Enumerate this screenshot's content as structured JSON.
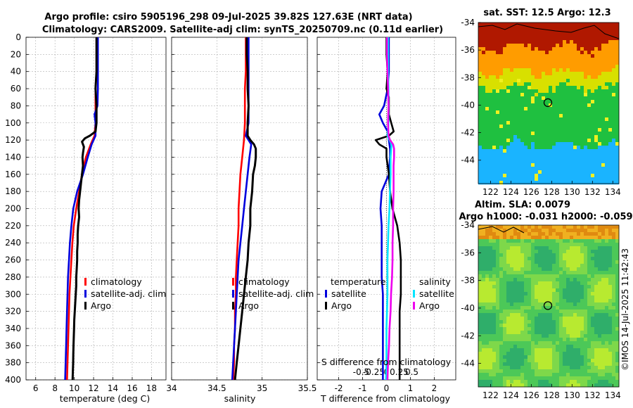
{
  "header": {
    "title_line1": "Argo profile: csiro 5905196_298 09-Jul-2025 39.82S 127.63E (NRT data)",
    "title_line2": "Climatology: CARS2009. Satellite-adj clim: synTS_20250709.nc (0.11d earlier)"
  },
  "credit": "©IMOS 14-Jul-2025 11:42:43",
  "depth_axis": {
    "ylim": [
      0,
      400
    ],
    "ticks": [
      0,
      20,
      40,
      60,
      80,
      100,
      120,
      140,
      160,
      180,
      200,
      220,
      240,
      260,
      280,
      300,
      320,
      340,
      360,
      380,
      400
    ]
  },
  "colors": {
    "climatology": "#ff0000",
    "satellite_adj": "#0000dd",
    "argo": "#000000",
    "sat_salinity": "#00e5ff",
    "argo_salinity": "#ee00ee",
    "zero_line": "#505050"
  },
  "chart_data": [
    {
      "type": "line",
      "panel": "temperature",
      "xlabel": "temperature (deg C)",
      "xlim": [
        5,
        19.5
      ],
      "xticks": [
        6,
        8,
        10,
        12,
        14,
        16,
        18
      ],
      "ylabel": "",
      "legend": {
        "position": "bottom-right",
        "entries": [
          "climatology",
          "satellite-adj. clim",
          "Argo"
        ]
      },
      "series": [
        {
          "name": "climatology",
          "depth": [
            0,
            20,
            40,
            60,
            80,
            100,
            115,
            125,
            140,
            160,
            180,
            200,
            220,
            240,
            260,
            280,
            300,
            320,
            340,
            360,
            380,
            400
          ],
          "values": [
            12.3,
            12.3,
            12.3,
            12.2,
            12.2,
            12.2,
            12.1,
            11.7,
            11.2,
            10.8,
            10.5,
            10.2,
            9.95,
            9.8,
            9.7,
            9.6,
            9.5,
            9.45,
            9.4,
            9.35,
            9.3,
            9.25
          ]
        },
        {
          "name": "satellite-adj. clim",
          "depth": [
            0,
            20,
            40,
            60,
            80,
            90,
            100,
            115,
            125,
            140,
            160,
            180,
            200,
            220,
            240,
            260,
            280,
            300,
            320,
            340,
            360,
            380,
            400
          ],
          "values": [
            12.45,
            12.45,
            12.45,
            12.45,
            12.4,
            12.1,
            12.2,
            12.2,
            11.8,
            11.4,
            10.9,
            10.3,
            9.9,
            9.7,
            9.55,
            9.45,
            9.35,
            9.3,
            9.25,
            9.2,
            9.15,
            9.1,
            9.05
          ]
        },
        {
          "name": "Argo",
          "depth": [
            0,
            20,
            40,
            60,
            80,
            100,
            110,
            115,
            118,
            122,
            128,
            135,
            140,
            150,
            160,
            170,
            180,
            190,
            200,
            210,
            220,
            230,
            240,
            250,
            260,
            270,
            280,
            290,
            300,
            310,
            320,
            330,
            340,
            350,
            360,
            370,
            380,
            390,
            400
          ],
          "values": [
            12.3,
            12.3,
            12.3,
            12.2,
            12.3,
            12.3,
            12.2,
            11.6,
            11.1,
            10.8,
            11.0,
            10.9,
            10.85,
            10.9,
            10.8,
            10.7,
            10.6,
            10.5,
            10.45,
            10.5,
            10.4,
            10.35,
            10.35,
            10.3,
            10.3,
            10.25,
            10.2,
            10.2,
            10.15,
            10.1,
            10.05,
            10.0,
            9.98,
            9.95,
            9.92,
            9.9,
            9.88,
            9.85,
            9.82
          ]
        }
      ]
    },
    {
      "type": "line",
      "panel": "salinity",
      "xlabel": "salinity",
      "xlim": [
        34.0,
        35.5
      ],
      "xticks": [
        34,
        34.5,
        35,
        35.5
      ],
      "xtick_labels": [
        "34",
        "34.5",
        "35",
        "35.5"
      ],
      "legend": {
        "position": "bottom-right",
        "entries": [
          "climatology",
          "satellite-adj. clim",
          "Argo"
        ]
      },
      "series": [
        {
          "name": "climatology",
          "depth": [
            0,
            20,
            40,
            60,
            80,
            100,
            120,
            140,
            160,
            180,
            200,
            220,
            240,
            260,
            280,
            300,
            320,
            340,
            360,
            380,
            400
          ],
          "values": [
            34.82,
            34.82,
            34.82,
            34.81,
            34.81,
            34.81,
            34.8,
            34.78,
            34.76,
            34.75,
            34.74,
            34.74,
            34.73,
            34.72,
            34.71,
            34.71,
            34.7,
            34.7,
            34.69,
            34.69,
            34.68
          ]
        },
        {
          "name": "satellite-adj. clim",
          "depth": [
            0,
            20,
            40,
            60,
            80,
            100,
            115,
            125,
            140,
            160,
            180,
            200,
            220,
            240,
            260,
            280,
            300,
            320,
            340,
            360,
            380,
            400
          ],
          "values": [
            34.85,
            34.85,
            34.85,
            34.85,
            34.85,
            34.85,
            34.82,
            34.88,
            34.86,
            34.84,
            34.82,
            34.8,
            34.78,
            34.76,
            34.74,
            34.73,
            34.72,
            34.71,
            34.7,
            34.69,
            34.68,
            34.67
          ]
        },
        {
          "name": "Argo",
          "depth": [
            0,
            20,
            40,
            60,
            80,
            100,
            115,
            120,
            125,
            130,
            140,
            150,
            160,
            180,
            200,
            220,
            240,
            260,
            280,
            300,
            320,
            340,
            360,
            380,
            400
          ],
          "values": [
            34.83,
            34.83,
            34.84,
            34.84,
            34.85,
            34.84,
            34.84,
            34.87,
            34.91,
            34.93,
            34.93,
            34.92,
            34.9,
            34.89,
            34.87,
            34.87,
            34.85,
            34.84,
            34.82,
            34.8,
            34.78,
            34.76,
            34.74,
            34.72,
            34.7
          ]
        }
      ]
    },
    {
      "type": "line",
      "panel": "difference",
      "xlabel": "T difference from climatology",
      "xlim": [
        -2.9,
        2.9
      ],
      "xticks": [
        -2,
        -1,
        0,
        1,
        2
      ],
      "s_axis_title": "S difference from climatology",
      "s_xticks": [
        -0.5,
        -0.25,
        0,
        0.25,
        0.5
      ],
      "s_xtick_labels": [
        "-0.5",
        "-0.25",
        "0",
        "0.25",
        "0.5"
      ],
      "legend": {
        "position": "bottom",
        "temperature_title": "temperature",
        "salinity_title": "salinity",
        "entries": [
          "satellite",
          "Argo",
          "satellite",
          "Argo"
        ]
      },
      "series": [
        {
          "name": "temperature satellite",
          "depth": [
            0,
            20,
            40,
            60,
            80,
            90,
            100,
            110,
            120,
            130,
            140,
            160,
            180,
            200,
            220,
            240,
            260,
            280,
            300,
            320,
            340,
            360,
            380,
            400
          ],
          "values": [
            0.1,
            0.1,
            0.1,
            0.05,
            -0.1,
            -0.3,
            -0.15,
            0.05,
            0.1,
            0.15,
            0.15,
            0.1,
            -0.2,
            -0.25,
            -0.2,
            -0.2,
            -0.2,
            -0.2,
            -0.15,
            -0.15,
            -0.15,
            -0.15,
            -0.15,
            -0.15
          ]
        },
        {
          "name": "temperature Argo",
          "depth": [
            0,
            20,
            40,
            60,
            70,
            80,
            90,
            100,
            110,
            115,
            120,
            125,
            130,
            140,
            150,
            160,
            180,
            200,
            220,
            240,
            260,
            280,
            300,
            320,
            340,
            360,
            380,
            400
          ],
          "values": [
            0.0,
            0.0,
            0.05,
            0.0,
            0.1,
            0.1,
            0.1,
            0.2,
            0.3,
            0.1,
            -0.45,
            -0.3,
            0.0,
            0.0,
            0.05,
            0.1,
            0.15,
            0.25,
            0.45,
            0.55,
            0.6,
            0.6,
            0.6,
            0.55,
            0.55,
            0.55,
            0.55,
            0.55
          ]
        },
        {
          "name": "salinity satellite",
          "depth": [
            0,
            20,
            40,
            60,
            80,
            100,
            115,
            125,
            140,
            160,
            180,
            200,
            220,
            240,
            260,
            280,
            300,
            320,
            340,
            360,
            380,
            400
          ],
          "values": [
            0.03,
            0.03,
            0.03,
            0.04,
            0.04,
            0.04,
            0.02,
            0.1,
            0.08,
            0.08,
            0.07,
            0.06,
            0.04,
            0.03,
            0.02,
            0.02,
            0.02,
            0.01,
            0.0,
            0.0,
            0.0,
            -0.01
          ]
        },
        {
          "name": "salinity Argo",
          "depth": [
            0,
            20,
            40,
            60,
            80,
            100,
            115,
            120,
            125,
            130,
            140,
            150,
            160,
            180,
            200,
            220,
            240,
            260,
            280,
            300,
            320,
            340,
            360,
            380,
            400
          ],
          "values": [
            0.01,
            0.01,
            0.02,
            0.03,
            0.04,
            0.03,
            0.04,
            0.07,
            0.13,
            0.15,
            0.15,
            0.14,
            0.14,
            0.14,
            0.13,
            0.13,
            0.12,
            0.12,
            0.11,
            0.09,
            0.08,
            0.06,
            0.05,
            0.03,
            0.02
          ]
        }
      ]
    },
    {
      "type": "heatmap",
      "panel": "sst_map",
      "title": "sat. SST: 12.5 Argo: 12.3",
      "xlim": [
        120.8,
        134.6
      ],
      "ylim": [
        -45.7,
        -34
      ],
      "xticks": [
        122,
        124,
        126,
        128,
        130,
        132,
        134
      ],
      "yticks": [
        -34,
        -36,
        -38,
        -40,
        -42,
        -44
      ],
      "marker": {
        "lon": 127.63,
        "lat": -39.82
      },
      "bands": [
        {
          "lat_max": -34,
          "lat_min": -35.7,
          "description": "warm",
          "color": "#b01800"
        },
        {
          "lat_max": -35.7,
          "lat_min": -37.5,
          "description": "warm-mid",
          "color": "#ff9c00"
        },
        {
          "lat_max": -37.5,
          "lat_min": -38.6,
          "description": "mid",
          "color": "#d8e000"
        },
        {
          "lat_max": -38.6,
          "lat_min": -42.8,
          "description": "cool",
          "color": "#1fc040"
        },
        {
          "lat_max": -42.8,
          "lat_min": -45.7,
          "description": "cold",
          "color": "#1ab4ff"
        }
      ]
    },
    {
      "type": "heatmap",
      "panel": "sla_map",
      "title_line1": "Altim. SLA: 0.0079",
      "title_line2": "Argo h1000: -0.031 h2000: -0.059",
      "xlim": [
        120.8,
        134.6
      ],
      "ylim": [
        -45.7,
        -34
      ],
      "xticks": [
        122,
        124,
        126,
        128,
        130,
        132,
        134
      ],
      "yticks": [
        -34,
        -36,
        -38,
        -40,
        -42,
        -44
      ],
      "marker": {
        "lon": 127.63,
        "lat": -39.82
      }
    }
  ]
}
